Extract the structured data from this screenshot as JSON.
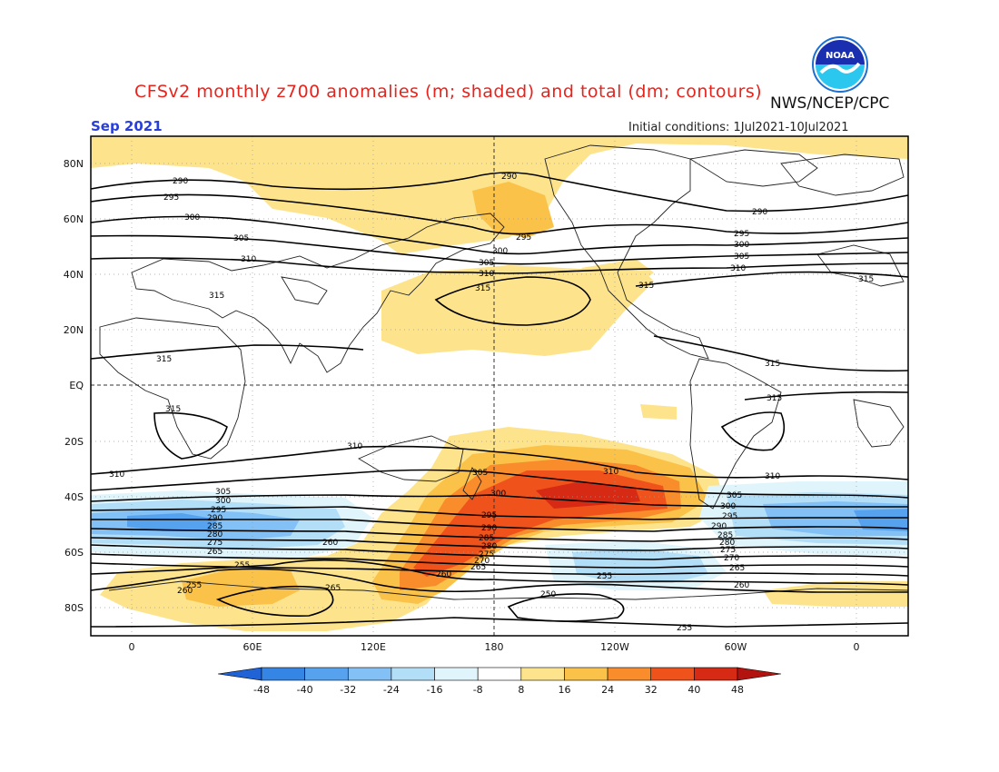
{
  "title": "CFSv2 monthly z700 anomalies (m; shaded) and total (dm; contours)",
  "agency": "NWS/NCEP/CPC",
  "logo_text": "NOAA",
  "valid_month": "Sep 2021",
  "initial_conditions": "Initial conditions: 1Jul2021-10Jul2021",
  "lat_labels": [
    "80N",
    "60N",
    "40N",
    "20N",
    "EQ",
    "20S",
    "40S",
    "60S",
    "80S"
  ],
  "lon_labels": [
    "0",
    "60E",
    "120E",
    "180",
    "120W",
    "60W",
    "0"
  ],
  "colorbar": {
    "ticks": [
      "-48",
      "-40",
      "-32",
      "-24",
      "-16",
      "-8",
      "8",
      "16",
      "24",
      "32",
      "40",
      "48"
    ],
    "colors": [
      "#1f63d6",
      "#3585e4",
      "#57a2ef",
      "#82c0f5",
      "#b3def7",
      "#dff4fb",
      "#ffffff",
      "#fde48c",
      "#fbc24a",
      "#f98d2c",
      "#f0521b",
      "#d62a14",
      "#b3130f"
    ]
  },
  "contour_labels": {
    "c250": "250",
    "c255": "255",
    "c260": "260",
    "c265": "265",
    "c270": "270",
    "c275": "275",
    "c280": "280",
    "c285": "285",
    "c290": "290",
    "c295": "295",
    "c300": "300",
    "c305": "305",
    "c310": "310",
    "c315": "315"
  }
}
